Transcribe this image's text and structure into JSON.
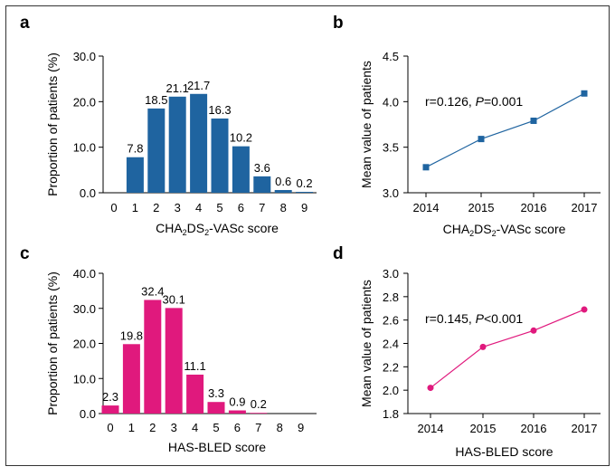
{
  "colors": {
    "blue": "#1f64a0",
    "magenta": "#e0197d",
    "frame": "#333333"
  },
  "chart_data": [
    {
      "panel": "a",
      "type": "bar",
      "color": "#1f64a0",
      "categories": [
        "0",
        "1",
        "2",
        "3",
        "4",
        "5",
        "6",
        "7",
        "8",
        "9"
      ],
      "values": [
        0,
        7.8,
        18.5,
        21.1,
        21.7,
        16.3,
        10.2,
        3.6,
        0.6,
        0.2
      ],
      "data_labels": [
        "",
        "7.8",
        "18.5",
        "21.1",
        "21.7",
        "16.3",
        "10.2",
        "3.6",
        "0.6",
        "0.2"
      ],
      "ylabel": "Proportion of patients (%)",
      "xlabel": {
        "pre": "CHA",
        "s1": "2",
        "mid": "DS",
        "s2": "2",
        "post": "-VASc score"
      },
      "ylim": [
        0,
        30
      ],
      "yticks": [
        0,
        10,
        20,
        30
      ],
      "ytick_labels": [
        "0.0",
        "10.0",
        "20.0",
        "30.0"
      ]
    },
    {
      "panel": "b",
      "type": "line",
      "color": "#1f64a0",
      "marker": "square",
      "x": [
        "2014",
        "2015",
        "2016",
        "2017"
      ],
      "y": [
        3.28,
        3.59,
        3.79,
        4.09
      ],
      "ylabel": "Mean value of patients",
      "xlabel": {
        "pre": "CHA",
        "s1": "2",
        "mid": "DS",
        "s2": "2",
        "post": "-VASc score"
      },
      "annotation": {
        "r": "r=0.126, ",
        "p": "P",
        "rest": "=0.001"
      },
      "ylim": [
        3.0,
        4.5
      ],
      "yticks": [
        3.0,
        3.5,
        4.0,
        4.5
      ],
      "ytick_labels": [
        "3.0",
        "3.5",
        "4.0",
        "4.5"
      ]
    },
    {
      "panel": "c",
      "type": "bar",
      "color": "#e0197d",
      "categories": [
        "0",
        "1",
        "2",
        "3",
        "4",
        "5",
        "6",
        "7",
        "8",
        "9"
      ],
      "values": [
        2.3,
        19.8,
        32.4,
        30.1,
        11.1,
        3.3,
        0.9,
        0.2,
        0,
        0
      ],
      "data_labels": [
        "2.3",
        "19.8",
        "32.4",
        "30.1",
        "11.1",
        "3.3",
        "0.9",
        "0.2",
        "",
        ""
      ],
      "ylabel": "Proportion of patients (%)",
      "xlabel": {
        "pre": "HAS-BLED score"
      },
      "ylim": [
        0,
        40
      ],
      "yticks": [
        0,
        10,
        20,
        30,
        40
      ],
      "ytick_labels": [
        "0.0",
        "10.0",
        "20.0",
        "30.0",
        "40.0"
      ]
    },
    {
      "panel": "d",
      "type": "line",
      "color": "#e0197d",
      "marker": "circle",
      "x": [
        "2014",
        "2015",
        "2016",
        "2017"
      ],
      "y": [
        2.02,
        2.37,
        2.51,
        2.69
      ],
      "ylabel": "Mean value of patients",
      "xlabel": {
        "pre": "HAS-BLED score"
      },
      "annotation": {
        "r": "r=0.145, ",
        "p": "P",
        "rest": "<0.001"
      },
      "ylim": [
        1.8,
        3.0
      ],
      "yticks": [
        1.8,
        2.0,
        2.2,
        2.4,
        2.6,
        2.8,
        3.0
      ],
      "ytick_labels": [
        "1.8",
        "2.0",
        "2.2",
        "2.4",
        "2.6",
        "2.8",
        "3.0"
      ]
    }
  ]
}
